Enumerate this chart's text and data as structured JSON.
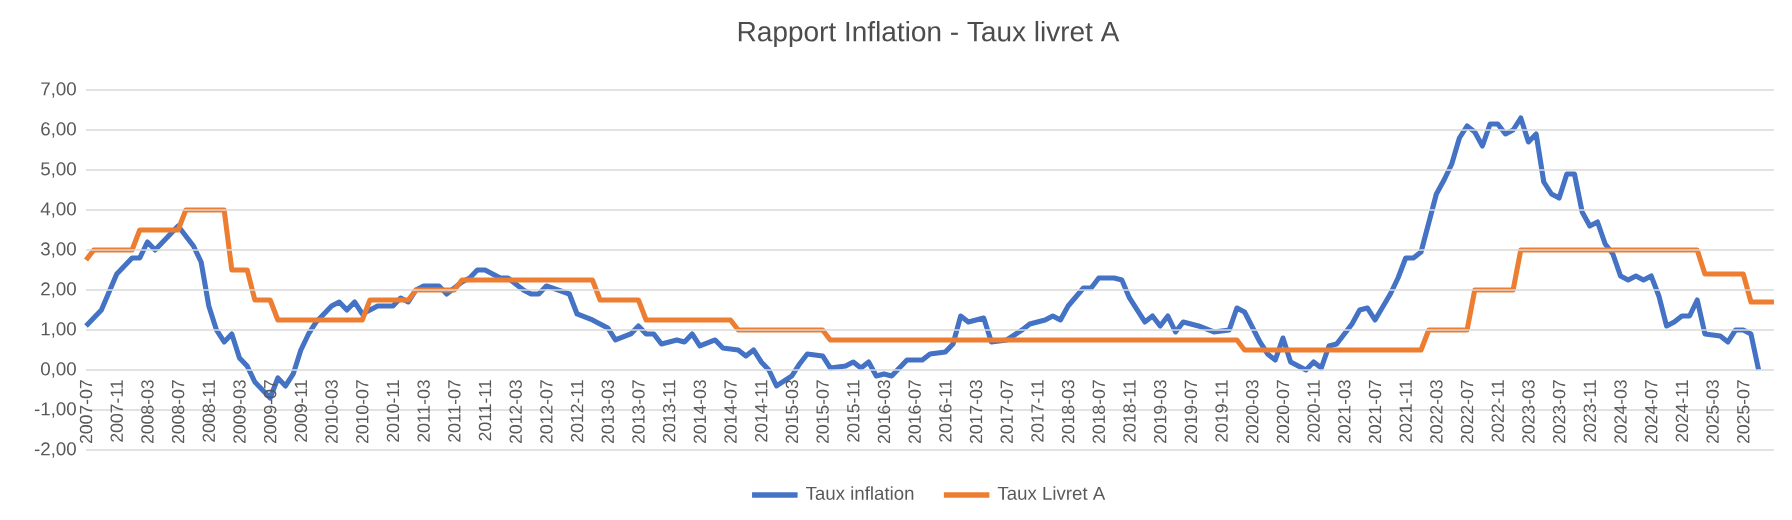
{
  "chart_data": {
    "type": "line",
    "title": "Rapport Inflation - Taux livret A",
    "xlim": [
      "2007-07",
      "2025-11"
    ],
    "xticks": [
      "2007-07",
      "2007-11",
      "2008-03",
      "2008-07",
      "2008-11",
      "2009-03",
      "2009-07",
      "2009-11",
      "2010-03",
      "2010-07",
      "2010-11",
      "2011-03",
      "2011-07",
      "2011-11",
      "2012-03",
      "2012-07",
      "2012-11",
      "2013-03",
      "2013-07",
      "2013-11",
      "2014-03",
      "2014-07",
      "2014-11",
      "2015-03",
      "2015-07",
      "2015-11",
      "2016-03",
      "2016-07",
      "2016-11",
      "2017-03",
      "2017-07",
      "2017-11",
      "2018-03",
      "2018-07",
      "2018-11",
      "2019-03",
      "2019-07",
      "2019-11",
      "2020-03",
      "2020-07",
      "2020-11",
      "2021-03",
      "2021-07",
      "2021-11",
      "2022-03",
      "2022-07",
      "2022-11",
      "2023-03",
      "2023-07",
      "2023-11",
      "2024-03",
      "2024-07",
      "2024-11",
      "2025-03",
      "2025-07"
    ],
    "ylim": [
      -2,
      7
    ],
    "yticks": [
      {
        "value": -2,
        "label": "-2,00"
      },
      {
        "value": -1,
        "label": "-1,00"
      },
      {
        "value": 0,
        "label": "0,00"
      },
      {
        "value": 1,
        "label": "1,00"
      },
      {
        "value": 2,
        "label": "2,00"
      },
      {
        "value": 3,
        "label": "3,00"
      },
      {
        "value": 4,
        "label": "4,00"
      },
      {
        "value": 5,
        "label": "5,00"
      },
      {
        "value": 6,
        "label": "6,00"
      },
      {
        "value": 7,
        "label": "7,00"
      }
    ],
    "grid": "y",
    "legend": "bottom",
    "series": [
      {
        "name": "Taux inflation",
        "color": "#4472c4",
        "x": [
          "2007-07",
          "2007-09",
          "2007-11",
          "2008-01",
          "2008-02",
          "2008-03",
          "2008-04",
          "2008-06",
          "2008-07",
          "2008-09",
          "2008-10",
          "2008-11",
          "2008-12",
          "2009-01",
          "2009-02",
          "2009-03",
          "2009-04",
          "2009-05",
          "2009-06",
          "2009-07",
          "2009-08",
          "2009-09",
          "2009-10",
          "2009-11",
          "2009-12",
          "2010-01",
          "2010-03",
          "2010-04",
          "2010-05",
          "2010-06",
          "2010-07",
          "2010-09",
          "2010-11",
          "2010-12",
          "2011-01",
          "2011-02",
          "2011-03",
          "2011-05",
          "2011-06",
          "2011-08",
          "2011-09",
          "2011-10",
          "2011-11",
          "2012-01",
          "2012-02",
          "2012-04",
          "2012-05",
          "2012-06",
          "2012-07",
          "2012-10",
          "2012-11",
          "2013-01",
          "2013-03",
          "2013-04",
          "2013-06",
          "2013-07",
          "2013-08",
          "2013-09",
          "2013-10",
          "2013-12",
          "2014-01",
          "2014-02",
          "2014-03",
          "2014-05",
          "2014-06",
          "2014-08",
          "2014-09",
          "2014-10",
          "2014-11",
          "2014-12",
          "2015-01",
          "2015-03",
          "2015-04",
          "2015-05",
          "2015-07",
          "2015-08",
          "2015-10",
          "2015-11",
          "2015-12",
          "2016-01",
          "2016-02",
          "2016-03",
          "2016-04",
          "2016-06",
          "2016-08",
          "2016-09",
          "2016-11",
          "2016-12",
          "2017-01",
          "2017-02",
          "2017-04",
          "2017-05",
          "2017-07",
          "2017-09",
          "2017-10",
          "2017-12",
          "2018-01",
          "2018-02",
          "2018-03",
          "2018-05",
          "2018-06",
          "2018-07",
          "2018-09",
          "2018-10",
          "2018-11",
          "2019-01",
          "2019-02",
          "2019-03",
          "2019-04",
          "2019-05",
          "2019-06",
          "2019-08",
          "2019-10",
          "2019-12",
          "2020-01",
          "2020-02",
          "2020-04",
          "2020-05",
          "2020-06",
          "2020-07",
          "2020-08",
          "2020-10",
          "2020-11",
          "2020-12",
          "2021-01",
          "2021-02",
          "2021-04",
          "2021-05",
          "2021-06",
          "2021-07",
          "2021-09",
          "2021-10",
          "2021-11",
          "2021-12",
          "2022-01",
          "2022-03",
          "2022-04",
          "2022-05",
          "2022-06",
          "2022-07",
          "2022-08",
          "2022-09",
          "2022-10",
          "2022-11",
          "2022-12",
          "2023-01",
          "2023-02",
          "2023-03",
          "2023-04",
          "2023-05",
          "2023-06",
          "2023-07",
          "2023-08",
          "2023-09",
          "2023-10",
          "2023-11",
          "2023-12",
          "2024-01",
          "2024-02",
          "2024-03",
          "2024-04",
          "2024-05",
          "2024-06",
          "2024-07",
          "2024-08",
          "2024-09",
          "2024-10",
          "2024-11",
          "2024-12",
          "2025-01",
          "2025-02",
          "2025-04",
          "2025-05",
          "2025-06",
          "2025-07",
          "2025-08",
          "2025-09"
        ],
        "values": [
          1.1,
          1.5,
          2.4,
          2.8,
          2.8,
          3.2,
          3.0,
          3.4,
          3.6,
          3.1,
          2.7,
          1.6,
          1.0,
          0.7,
          0.9,
          0.3,
          0.1,
          -0.3,
          -0.5,
          -0.7,
          -0.2,
          -0.4,
          -0.1,
          0.5,
          0.9,
          1.2,
          1.6,
          1.7,
          1.5,
          1.7,
          1.4,
          1.6,
          1.6,
          1.8,
          1.7,
          2.0,
          2.1,
          2.1,
          1.9,
          2.2,
          2.3,
          2.5,
          2.5,
          2.3,
          2.3,
          2.0,
          1.9,
          1.9,
          2.1,
          1.9,
          1.4,
          1.25,
          1.05,
          0.75,
          0.9,
          1.1,
          0.9,
          0.9,
          0.65,
          0.75,
          0.7,
          0.9,
          0.6,
          0.75,
          0.55,
          0.5,
          0.35,
          0.5,
          0.2,
          0.0,
          -0.4,
          -0.15,
          0.15,
          0.4,
          0.35,
          0.05,
          0.1,
          0.2,
          0.05,
          0.2,
          -0.15,
          -0.1,
          -0.15,
          0.25,
          0.25,
          0.4,
          0.45,
          0.65,
          1.35,
          1.2,
          1.3,
          0.7,
          0.75,
          1.0,
          1.15,
          1.25,
          1.35,
          1.25,
          1.6,
          2.05,
          2.05,
          2.3,
          2.3,
          2.25,
          1.8,
          1.2,
          1.35,
          1.1,
          1.35,
          0.95,
          1.2,
          1.1,
          0.95,
          1.0,
          1.55,
          1.45,
          0.7,
          0.4,
          0.25,
          0.8,
          0.2,
          0.0,
          0.2,
          0.05,
          0.6,
          0.65,
          1.15,
          1.5,
          1.55,
          1.25,
          1.9,
          2.3,
          2.8,
          2.8,
          2.95,
          4.4,
          4.75,
          5.15,
          5.8,
          6.1,
          5.95,
          5.6,
          6.15,
          6.15,
          5.9,
          6.0,
          6.3,
          5.7,
          5.9,
          4.7,
          4.4,
          4.3,
          4.9,
          4.9,
          3.95,
          3.6,
          3.7,
          3.15,
          2.9,
          2.35,
          2.25,
          2.35,
          2.25,
          2.35,
          1.85,
          1.1,
          1.2,
          1.35,
          1.35,
          1.75,
          0.9,
          0.85,
          0.7,
          1.0,
          1.0,
          0.9,
          0.0
        ]
      },
      {
        "name": "Taux Livret A",
        "color": "#ed7d31",
        "x": [
          "2007-07",
          "2007-08",
          "2008-01",
          "2008-02",
          "2008-07",
          "2008-08",
          "2009-01",
          "2009-02",
          "2009-04",
          "2009-05",
          "2009-07",
          "2009-08",
          "2010-07",
          "2010-08",
          "2011-01",
          "2011-02",
          "2011-07",
          "2011-08",
          "2013-01",
          "2013-02",
          "2013-07",
          "2013-08",
          "2014-07",
          "2014-08",
          "2015-07",
          "2015-08",
          "2020-01",
          "2020-02",
          "2022-01",
          "2022-02",
          "2022-07",
          "2022-08",
          "2023-01",
          "2023-02",
          "2025-01",
          "2025-02",
          "2025-07",
          "2025-08",
          "2025-11"
        ],
        "values": [
          2.75,
          3.0,
          3.0,
          3.5,
          3.5,
          4.0,
          4.0,
          2.5,
          2.5,
          1.75,
          1.75,
          1.25,
          1.25,
          1.75,
          1.75,
          2.0,
          2.0,
          2.25,
          2.25,
          1.75,
          1.75,
          1.25,
          1.25,
          1.0,
          1.0,
          0.75,
          0.75,
          0.5,
          0.5,
          1.0,
          1.0,
          2.0,
          2.0,
          3.0,
          3.0,
          2.4,
          2.4,
          1.7,
          1.7
        ]
      }
    ]
  }
}
